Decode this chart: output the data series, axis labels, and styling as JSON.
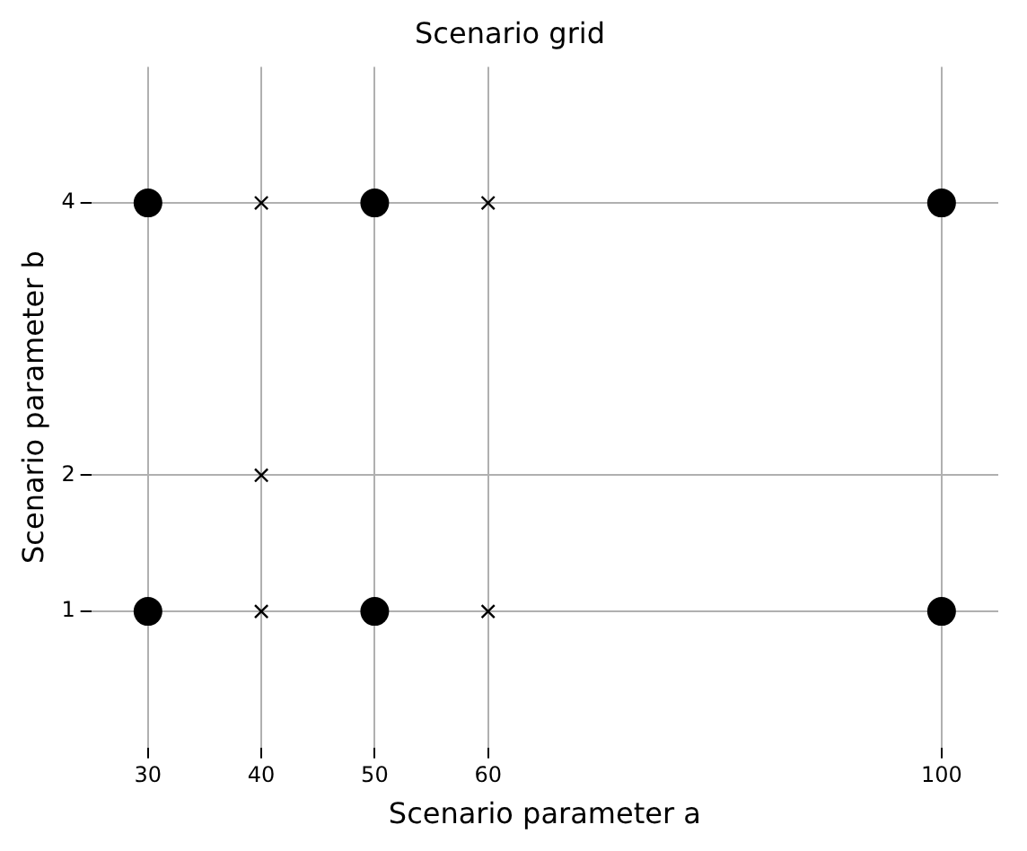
{
  "chart_data": {
    "type": "scatter",
    "title": "Scenario grid",
    "xlabel": "Scenario parameter a",
    "ylabel": "Scenario parameter b",
    "series": [
      {
        "type": "scatter",
        "marker": "circle",
        "color": "#000000",
        "x": [
          30,
          30,
          50,
          50,
          100,
          100
        ],
        "values": [
          1,
          4,
          1,
          4,
          1,
          4
        ]
      },
      {
        "type": "scatter",
        "marker": "cross",
        "color": "#000000",
        "x": [
          40,
          40,
          40,
          60,
          60
        ],
        "values": [
          1,
          2,
          4,
          1,
          4
        ]
      }
    ],
    "xlim": [
      25,
      105
    ],
    "ylim": [
      0,
      5
    ],
    "xticks": [
      30,
      40,
      50,
      60,
      100
    ],
    "yticks": [
      1,
      2,
      4
    ],
    "grid": true,
    "legend": false
  }
}
